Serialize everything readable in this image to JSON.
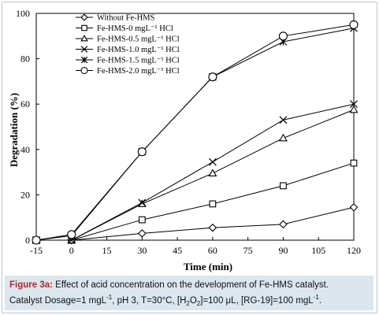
{
  "chart_data": {
    "type": "line",
    "xlabel": "Time (min)",
    "ylabel": "Degradation (%)",
    "xlim": [
      -15,
      120
    ],
    "ylim": [
      0,
      100
    ],
    "x_ticks": [
      "-15",
      "0",
      "15",
      "30",
      "45",
      "60",
      "75",
      "90",
      "105",
      "120"
    ],
    "y_ticks": [
      "0",
      "20",
      "40",
      "60",
      "80",
      "100"
    ],
    "legend_position": "top-left",
    "x": [
      -15,
      0,
      30,
      60,
      90,
      120
    ],
    "series": [
      {
        "name": "Without Fe-HMS",
        "marker": "diamond",
        "values": [
          0,
          0,
          3,
          5.5,
          7,
          14.5
        ]
      },
      {
        "name": "Fe-HMS-0 mgL⁻¹ HCl",
        "marker": "square",
        "values": [
          0,
          0,
          9,
          16,
          24,
          34
        ]
      },
      {
        "name": "Fe-HMS-0.5 mgL⁻¹ HCl",
        "marker": "triangle",
        "values": [
          0,
          0,
          16,
          29.5,
          45,
          57.5
        ]
      },
      {
        "name": "Fe-HMS-1.0 mgL⁻¹ HCl",
        "marker": "x",
        "values": [
          0,
          0,
          16.5,
          34.5,
          53,
          60
        ]
      },
      {
        "name": "Fe-HMS-1.5 mgL⁻¹ HCl",
        "marker": "star",
        "values": [
          0,
          2,
          39,
          72,
          87.5,
          93.5
        ]
      },
      {
        "name": "Fe-HMS-2.0 mgL⁻¹ HCl",
        "marker": "circle",
        "values": [
          0,
          2.5,
          39,
          72,
          90,
          95
        ]
      }
    ]
  },
  "caption": {
    "figure_label": "Figure 3a:",
    "line1": " Effect of acid concentration on the development of Fe-HMS catalyst.",
    "line2_a": "Catalyst Dosage=1 mgL",
    "sup1": "-1",
    "line2_b": ", pH 3, T=30°C, [H",
    "sub2": "2",
    "line2_c": "O",
    "sub3": "2",
    "line2_d": "]=100 μL, [RG-19]=100 mgL",
    "sup2": "-1",
    "line2_e": "."
  }
}
